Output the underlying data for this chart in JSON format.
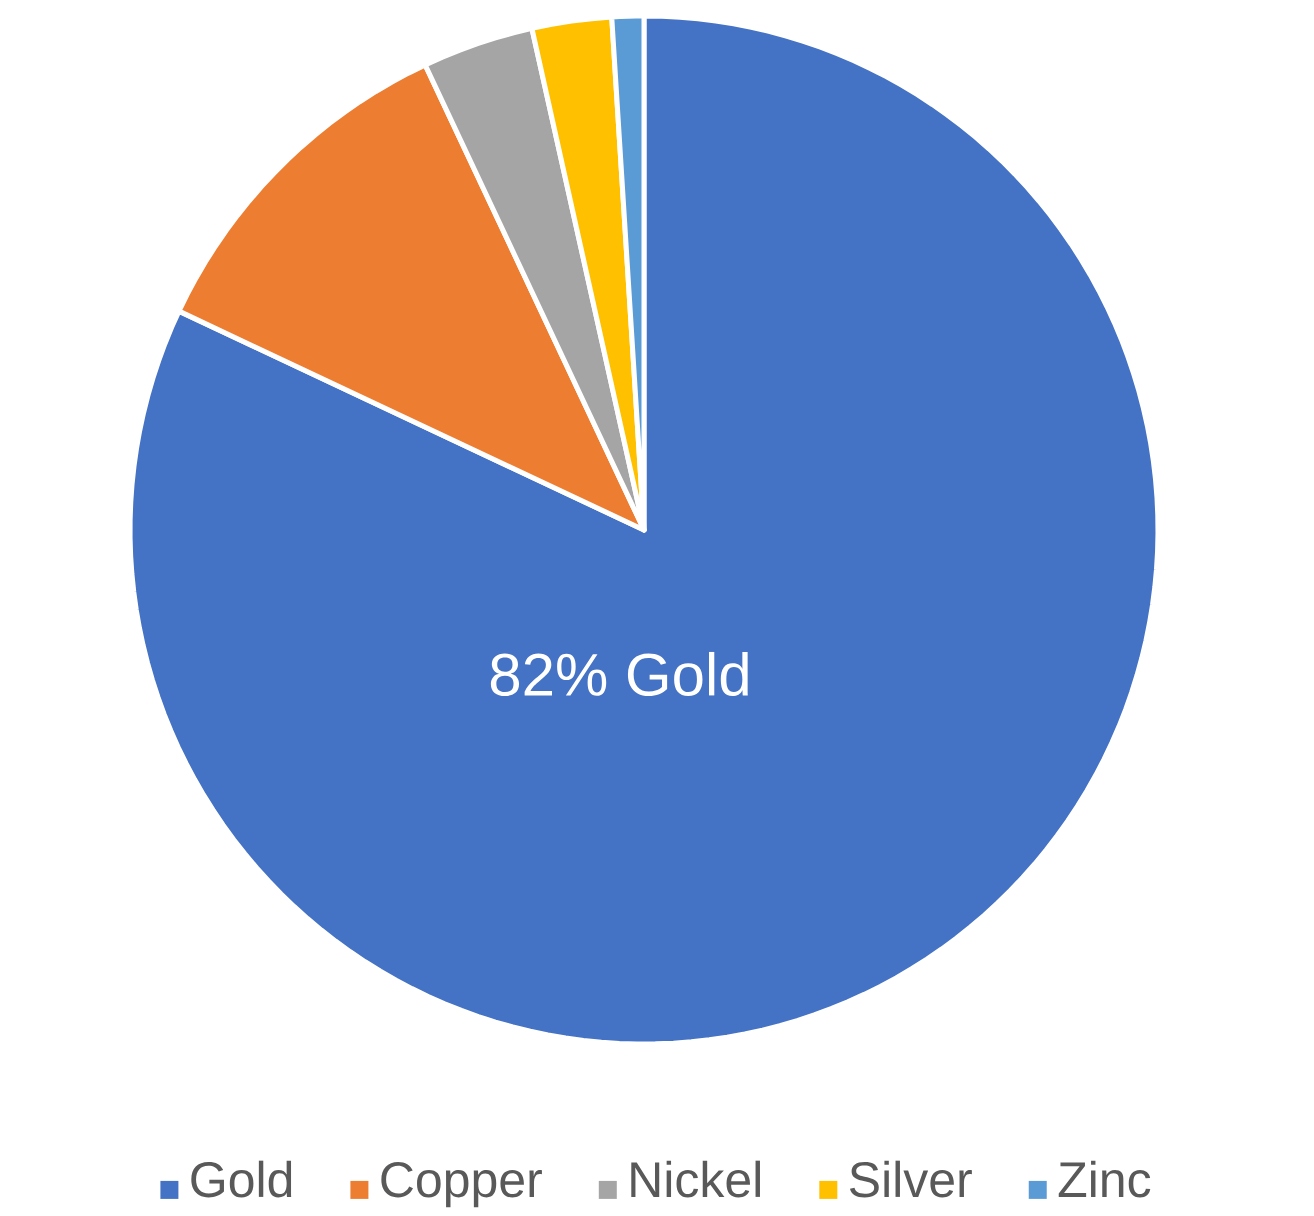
{
  "chart_data": {
    "type": "pie",
    "categories": [
      "Gold",
      "Copper",
      "Nickel",
      "Silver",
      "Zinc"
    ],
    "values": [
      82,
      11,
      3.5,
      2.5,
      1
    ],
    "colors": [
      "#4472c4",
      "#ed7d31",
      "#a5a5a5",
      "#ffc000",
      "#5b9bd5"
    ],
    "value_labels": [
      "82% Gold",
      null,
      null,
      null,
      null
    ],
    "legend": "bottom"
  }
}
